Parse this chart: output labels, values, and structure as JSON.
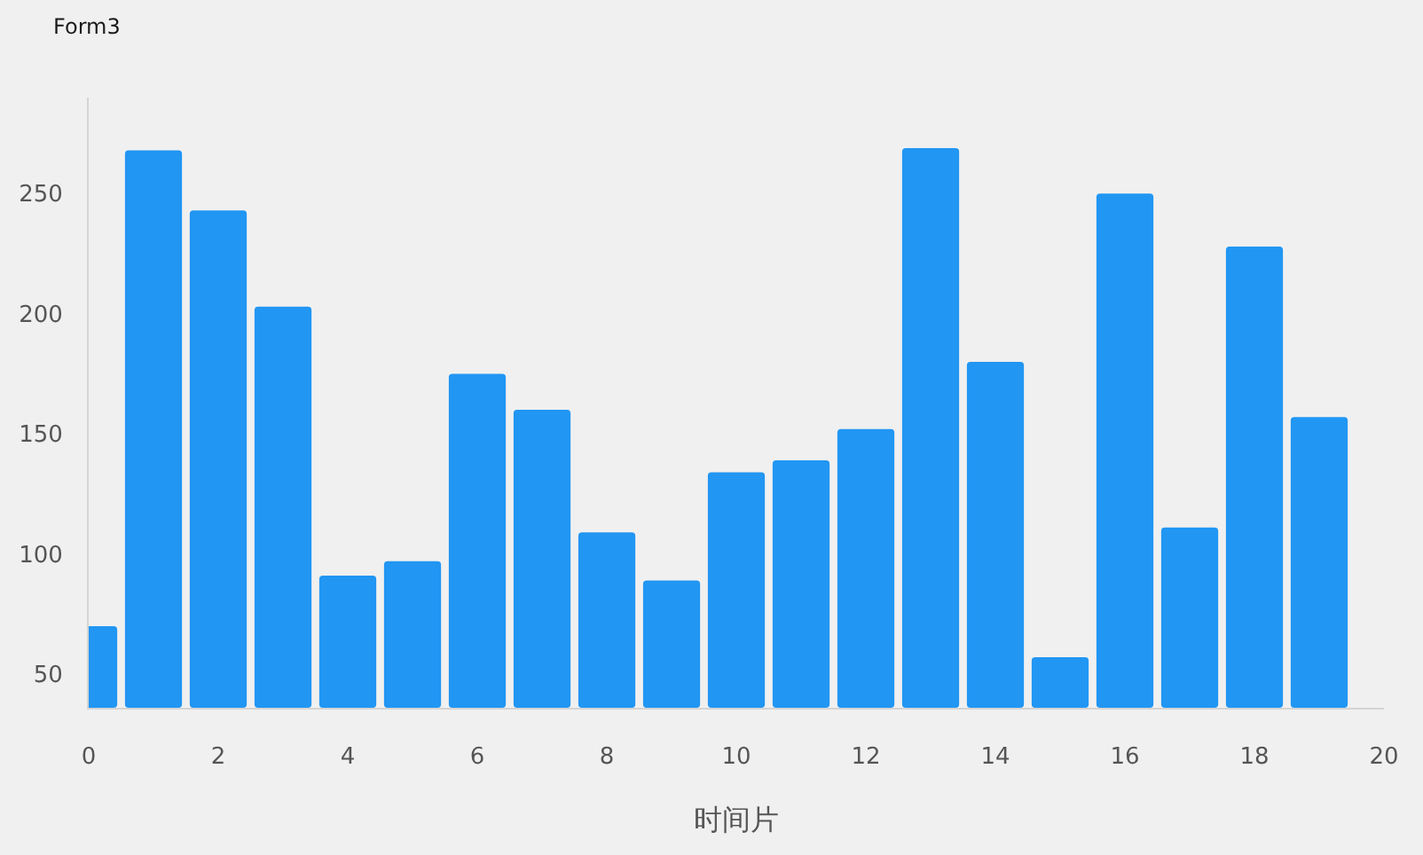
{
  "chart_data": {
    "type": "bar",
    "title": "Form3",
    "xlabel": "时间片",
    "x": [
      0,
      1,
      2,
      3,
      4,
      5,
      6,
      7,
      8,
      9,
      10,
      11,
      12,
      13,
      14,
      15,
      16,
      17,
      18,
      19
    ],
    "values": [
      70,
      268,
      243,
      203,
      91,
      97,
      175,
      160,
      109,
      89,
      134,
      139,
      152,
      269,
      180,
      57,
      250,
      111,
      228,
      157
    ],
    "color": "#2196f3",
    "xlim": [
      0,
      20
    ],
    "xticks": [
      0,
      2,
      4,
      6,
      8,
      10,
      12,
      14,
      16,
      18,
      20
    ],
    "ylim": [
      36,
      290
    ],
    "yticks": [
      50,
      100,
      150,
      200,
      250
    ]
  }
}
